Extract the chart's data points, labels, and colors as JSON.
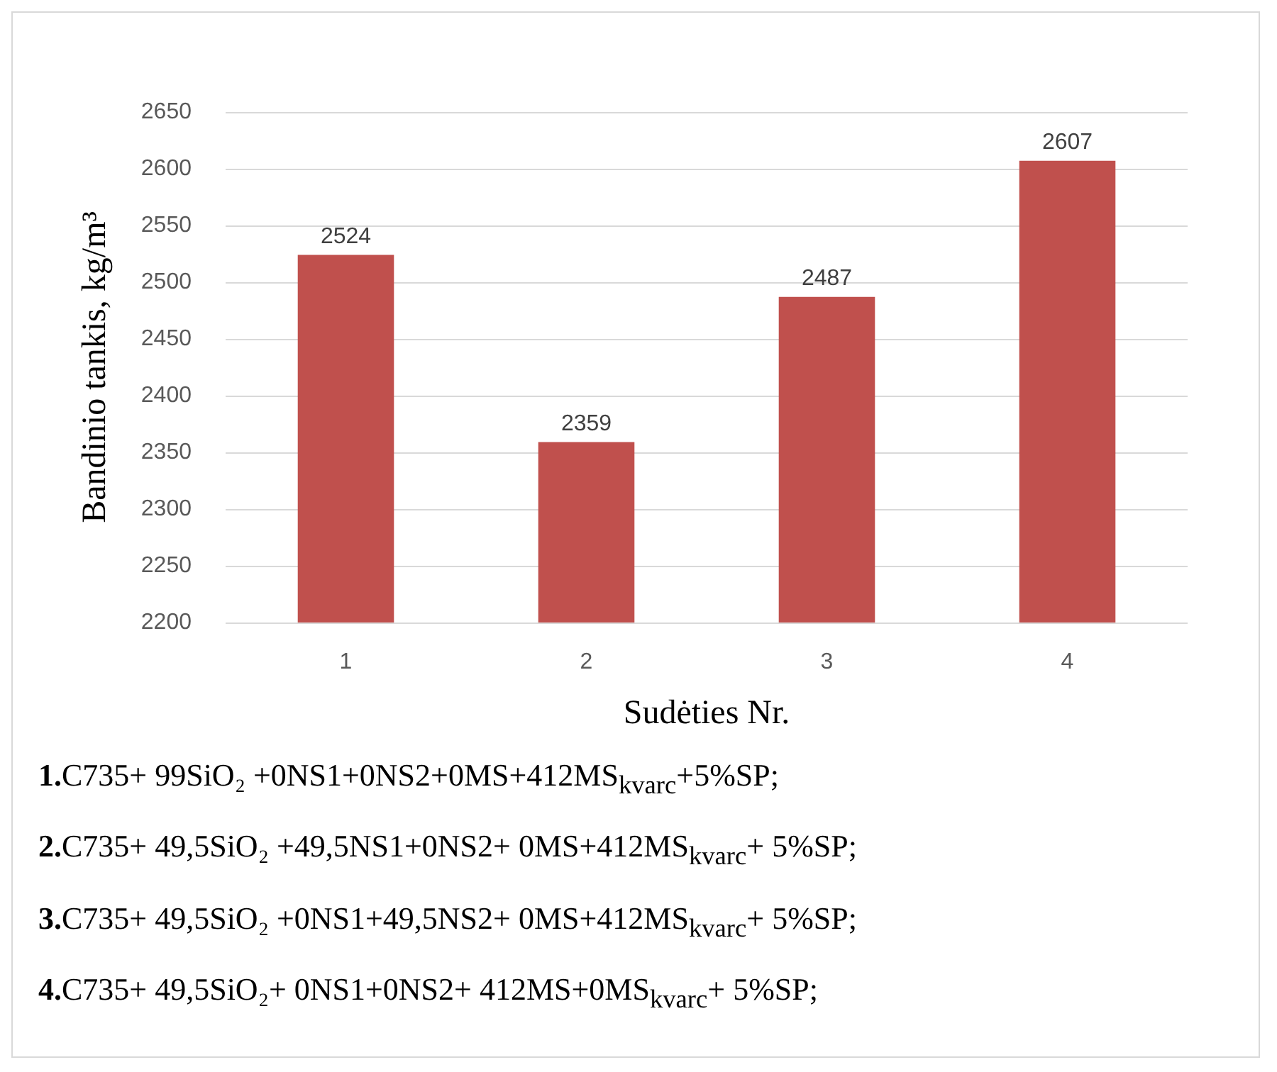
{
  "chart_data": {
    "type": "bar",
    "xlabel": "Sudėties Nr.",
    "ylabel": "Bandinio tankis, kg/m³",
    "categories": [
      "1",
      "2",
      "3",
      "4"
    ],
    "values": [
      2524,
      2359,
      2487,
      2607
    ],
    "color": "#c0504d",
    "ylim": [
      2200,
      2650
    ],
    "yticks": [
      2200,
      2250,
      2300,
      2350,
      2400,
      2450,
      2500,
      2550,
      2600,
      2650
    ],
    "grid": "y",
    "data_labels": true,
    "annotations": [
      "1.C735+ 99SiO₂ +0NS1+0NS2+0MS+412MS$_{kvarc}$+5%SP;",
      "2.C735+ 49,5SiO₂ +49,5NS1+0NS2+ 0MS+412MS$_{kvarc}$+ 5%SP;",
      "3.C735+ 49,5SiO₂ +0NS1+49,5NS2+ 0MS+412MS$_{kvarc}$+ 5%SP;",
      "4.C735+ 49,5SiO₂+ 0NS1+0NS2+ 412MS+0MS$_{kvarc}$+ 5%SP;"
    ]
  }
}
